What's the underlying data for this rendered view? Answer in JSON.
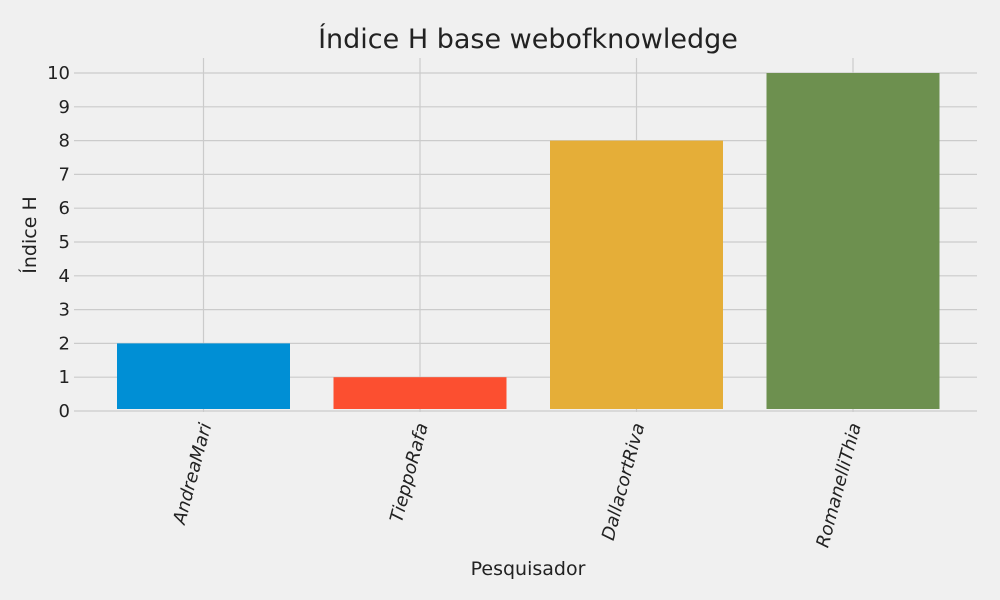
{
  "chart_data": {
    "type": "bar",
    "title": "Índice H base webofknowledge",
    "xlabel": "Pesquisador",
    "ylabel": "Índice H",
    "categories": [
      "AndreaMari",
      "TieppoRafa",
      "DallacortRiva",
      "RomanelliThia"
    ],
    "values": [
      2,
      1,
      8,
      10
    ],
    "colors": [
      "#008fd5",
      "#fc4f30",
      "#e5ae38",
      "#6d904f"
    ],
    "ylim": [
      0,
      10
    ],
    "yticks": [
      0,
      1,
      2,
      3,
      4,
      5,
      6,
      7,
      8,
      9,
      10
    ],
    "grid": true,
    "background": "#f0f0f0"
  }
}
